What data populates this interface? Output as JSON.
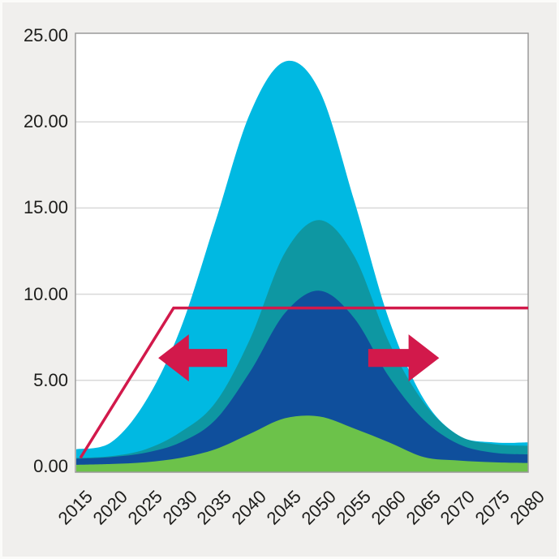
{
  "figure": {
    "outer_background": "#f0efed",
    "plot_background": "#ffffff",
    "plot_border_color": "#9a9a9a",
    "grid_color": "#d9d9d9",
    "tick_label_color": "#1d1d1b"
  },
  "chart_data": {
    "type": "area",
    "title": "",
    "xlabel": "",
    "ylabel": "",
    "xlim": [
      2015,
      2080
    ],
    "ylim": [
      0,
      25
    ],
    "grid": true,
    "legend": false,
    "x_ticks": [
      "2015",
      "2020",
      "2025",
      "2030",
      "2035",
      "2040",
      "2045",
      "2050",
      "2055",
      "2060",
      "2065",
      "2070",
      "2075",
      "2080"
    ],
    "y_ticks": [
      "25.00",
      "20.00",
      "15.00",
      "10.00",
      "5.00",
      "0.00"
    ],
    "x": [
      2015,
      2020,
      2025,
      2030,
      2035,
      2040,
      2045,
      2050,
      2055,
      2060,
      2065,
      2070,
      2075,
      2080
    ],
    "series": [
      {
        "name": "light-blue-outer-area",
        "color": "#00b9e2",
        "values": [
          1.0,
          1.4,
          3.8,
          8.0,
          14.2,
          20.5,
          23.5,
          21.8,
          15.4,
          8.5,
          3.9,
          1.8,
          1.4,
          1.4
        ]
      },
      {
        "name": "teal-area",
        "color": "#0e97a2",
        "values": [
          0.5,
          0.6,
          1.0,
          2.0,
          3.7,
          7.4,
          12.4,
          14.3,
          12.2,
          7.2,
          3.7,
          1.8,
          1.3,
          1.2
        ]
      },
      {
        "name": "dark-blue-area",
        "color": "#0f4f9c",
        "values": [
          0.45,
          0.55,
          0.8,
          1.4,
          2.7,
          5.5,
          8.9,
          10.2,
          8.6,
          5.2,
          2.7,
          1.3,
          0.8,
          0.7
        ]
      },
      {
        "name": "green-area",
        "color": "#6cc24a",
        "values": [
          0.1,
          0.15,
          0.25,
          0.5,
          1.0,
          1.9,
          2.8,
          2.9,
          2.2,
          1.4,
          0.55,
          0.35,
          0.25,
          0.2
        ]
      }
    ],
    "threshold_line": {
      "name": "red-threshold-line",
      "color": "#d2194b",
      "width": 3.5,
      "points": [
        [
          2015.6,
          0.5
        ],
        [
          2029.0,
          9.2
        ],
        [
          2080.0,
          9.2
        ]
      ]
    },
    "arrows": [
      {
        "name": "shift-left-arrow",
        "direction": "left",
        "tip_year": 2026.8,
        "tail_year": 2036.7,
        "y": 6.3,
        "head_length_years": 4.4,
        "head_half_units": 1.37,
        "body_half_units": 0.52,
        "color": "#d2194b"
      },
      {
        "name": "shift-right-arrow",
        "direction": "right",
        "tip_year": 2067.2,
        "tail_year": 2057.0,
        "y": 6.3,
        "head_length_years": 4.4,
        "head_half_units": 1.37,
        "body_half_units": 0.52,
        "color": "#d2194b"
      }
    ]
  }
}
